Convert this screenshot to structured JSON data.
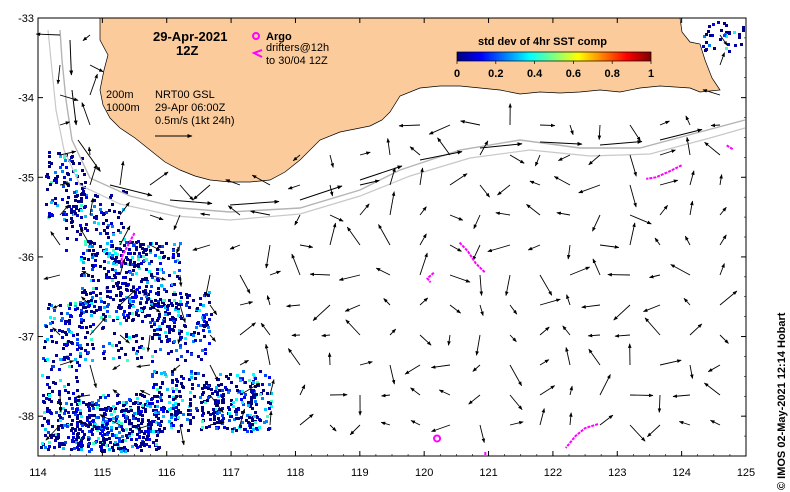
{
  "header": {
    "date": "29-Apr-2021",
    "time": "12Z"
  },
  "legend": {
    "argo_label": "Argo",
    "drifter_label_line1": "drifters@12h",
    "drifter_label_line2": "to 30/04 12Z",
    "depth1": "200m",
    "depth2": "1000m",
    "product_line1": "NRT00 GSL",
    "product_line2": "29-Apr 06:00Z",
    "speed_scale": "0.5m/s (1kt 24h)"
  },
  "colorbar": {
    "title": "std dev of 4hr SST comp",
    "ticks": [
      "0",
      "0.2",
      "0.4",
      "0.6",
      "0.8",
      "1"
    ],
    "range": [
      0,
      1
    ],
    "colors": [
      "#00007f",
      "#0000ff",
      "#0080ff",
      "#00ffff",
      "#80ff80",
      "#ffff00",
      "#ff8000",
      "#ff0000",
      "#7f0000"
    ]
  },
  "axes": {
    "x_ticks": [
      "114",
      "115",
      "116",
      "117",
      "118",
      "119",
      "120",
      "121",
      "122",
      "123",
      "124",
      "125"
    ],
    "y_ticks": [
      "-33",
      "-34",
      "-35",
      "-36",
      "-37",
      "-38"
    ],
    "lon_range": [
      114,
      125
    ],
    "lat_range": [
      -38.5,
      -33
    ]
  },
  "credit": "© IMOS 02-May-2021 12:14 Hobart",
  "colors": {
    "land": "#fbcb9b",
    "argo": "#ff00ff",
    "drifter": "#ff00ff",
    "isobath": "#b4b4b4"
  },
  "argo_floats": [
    {
      "lon": 120.2,
      "lat": -38.28
    }
  ]
}
